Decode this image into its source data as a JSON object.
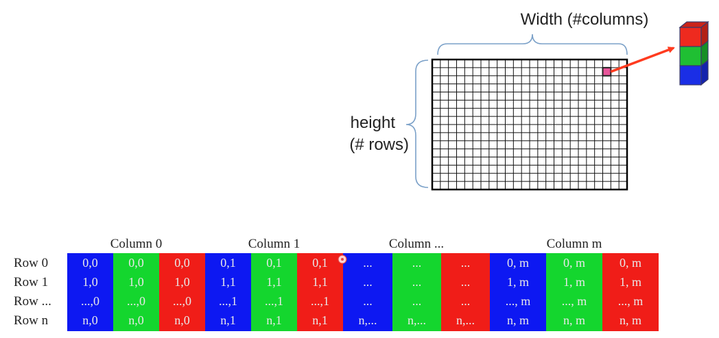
{
  "image_diagram": {
    "width_label": "Width (#columns)",
    "height_label_line1": "height",
    "height_label_line2": "(# rows)",
    "grid_rows": 16,
    "grid_cols": 24,
    "highlight_pixel": {
      "row": 1,
      "col": 21
    },
    "highlight_color": "#e8559a",
    "arrow_color": "#ff3b1f",
    "channel_stack": [
      {
        "name": "red-channel",
        "color": "#ee2a1f"
      },
      {
        "name": "green-channel",
        "color": "#1fbf33"
      },
      {
        "name": "blue-channel",
        "color": "#1a2ee6"
      }
    ]
  },
  "memory_layout": {
    "column_headers": [
      "Column 0",
      "Column 1",
      "Column ...",
      "Column m"
    ],
    "row_labels": [
      "Row 0",
      "Row 1",
      "Row ...",
      "Row n"
    ],
    "channel_colors": [
      "#0d18f2",
      "#14d62e",
      "#f01d18"
    ],
    "rows": [
      [
        "0,0",
        "0,0",
        "0,0",
        "0,1",
        "0,1",
        "0,1",
        "...",
        "...",
        "...",
        "0, m",
        "0, m",
        "0, m"
      ],
      [
        "1,0",
        "1,0",
        "1,0",
        "1,1",
        "1,1",
        "1,1",
        "...",
        "...",
        "...",
        "1, m",
        "1, m",
        "1, m"
      ],
      [
        "...,0",
        "...,0",
        "...,0",
        "...,1",
        "...,1",
        "...,1",
        "...",
        "...",
        "...",
        "..., m",
        "..., m",
        "..., m"
      ],
      [
        "n,0",
        "n,0",
        "n,0",
        "n,1",
        "n,1",
        "n,1",
        "n,...",
        "n,...",
        "n,...",
        "n, m",
        "n, m",
        "n, m"
      ]
    ]
  }
}
